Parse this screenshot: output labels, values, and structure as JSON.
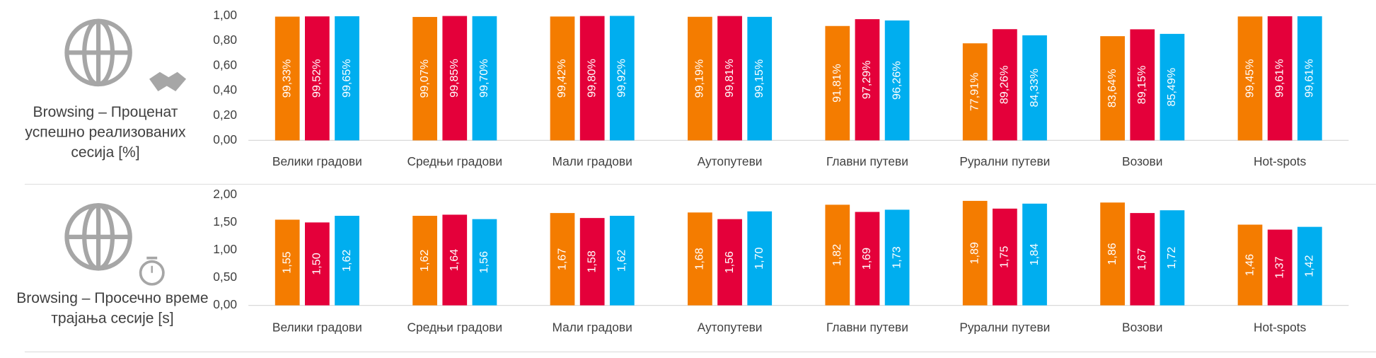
{
  "chart_data": [
    {
      "type": "bar",
      "title": "Browsing – Проценат успешно реализованих сесија [%]",
      "categories": [
        "Велики градови",
        "Средњи градови",
        "Мали градови",
        "Аутопутеви",
        "Главни путеви",
        "Рурални путеви",
        "Возови",
        "Hot-spots"
      ],
      "series": [
        {
          "color": "#f47c00",
          "values": [
            0.9933,
            0.9907,
            0.9942,
            0.9919,
            0.9181,
            0.7791,
            0.8364,
            0.9945
          ],
          "value_labels": [
            "99,33%",
            "99,07%",
            "99,42%",
            "99,19%",
            "91,81%",
            "77,91%",
            "83,64%",
            "99,45%"
          ]
        },
        {
          "color": "#e4003a",
          "values": [
            0.9952,
            0.9985,
            0.998,
            0.9981,
            0.9729,
            0.8926,
            0.8915,
            0.9961
          ],
          "value_labels": [
            "99,52%",
            "99,85%",
            "99,80%",
            "99,81%",
            "97,29%",
            "89,26%",
            "89,15%",
            "99,61%"
          ]
        },
        {
          "color": "#00aeef",
          "values": [
            0.9965,
            0.997,
            0.9992,
            0.9915,
            0.9626,
            0.8433,
            0.8549,
            0.9961
          ],
          "value_labels": [
            "99,65%",
            "99,70%",
            "99,92%",
            "99,15%",
            "96,26%",
            "84,33%",
            "85,49%",
            "99,61%"
          ]
        }
      ],
      "ylim": [
        0,
        1
      ],
      "yticks": [
        {
          "value": 0,
          "label": "0,00"
        },
        {
          "value": 0.2,
          "label": "0,20"
        },
        {
          "value": 0.4,
          "label": "0,40"
        },
        {
          "value": 0.6,
          "label": "0,60"
        },
        {
          "value": 0.8,
          "label": "0,80"
        },
        {
          "value": 1,
          "label": "1,00"
        }
      ]
    },
    {
      "type": "bar",
      "title": "Browsing – Просечно време трајања сесије [s]",
      "categories": [
        "Велики градови",
        "Средњи градови",
        "Мали градови",
        "Аутопутеви",
        "Главни путеви",
        "Рурални путеви",
        "Возови",
        "Hot-spots"
      ],
      "series": [
        {
          "color": "#f47c00",
          "values": [
            1.55,
            1.62,
            1.67,
            1.68,
            1.82,
            1.89,
            1.86,
            1.46
          ],
          "value_labels": [
            "1,55",
            "1,62",
            "1,67",
            "1,68",
            "1,82",
            "1,89",
            "1,86",
            "1,46"
          ]
        },
        {
          "color": "#e4003a",
          "values": [
            1.5,
            1.64,
            1.58,
            1.56,
            1.69,
            1.75,
            1.67,
            1.37
          ],
          "value_labels": [
            "1,50",
            "1,64",
            "1,58",
            "1,56",
            "1,69",
            "1,75",
            "1,67",
            "1,37"
          ]
        },
        {
          "color": "#00aeef",
          "values": [
            1.62,
            1.56,
            1.62,
            1.7,
            1.73,
            1.84,
            1.72,
            1.42
          ],
          "value_labels": [
            "1,62",
            "1,56",
            "1,62",
            "1,70",
            "1,73",
            "1,84",
            "1,72",
            "1,42"
          ]
        }
      ],
      "ylim": [
        0,
        2
      ],
      "yticks": [
        {
          "value": 0,
          "label": "0,00"
        },
        {
          "value": 0.5,
          "label": "0,50"
        },
        {
          "value": 1,
          "label": "1,00"
        },
        {
          "value": 1.5,
          "label": "1,50"
        },
        {
          "value": 2,
          "label": "2,00"
        }
      ]
    }
  ]
}
